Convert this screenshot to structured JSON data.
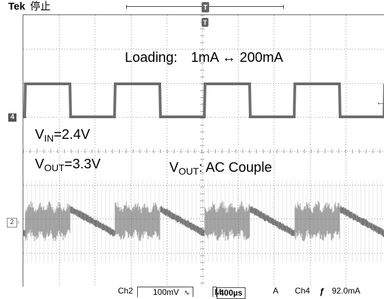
{
  "scope": {
    "brand": "Tek",
    "acq_status": "停止",
    "trigger_glyph": "T",
    "ch4_marker": "4",
    "ch2_marker": "2"
  },
  "annotations": {
    "loading_label": "Loading:",
    "loading_range": "1mA  ↔ 200mA",
    "vin_sym": "V",
    "vin_sub": "IN",
    "vin_val": "=2.4V",
    "vout_sym": "V",
    "vout_sub": "OUT",
    "vout_val": "=3.3V",
    "vout_ac_sym": "V",
    "vout_ac_sub": "OUT",
    "vout_ac_val": ": AC Couple"
  },
  "readout": {
    "ch2_label": "Ch2",
    "ch2_scale": "100mV",
    "ac_symbol": "∿",
    "timebase_prefix": "M",
    "timebase": "400µs",
    "delta": "A",
    "trigger_source": "Ch4",
    "slope_icon": "rising-edge",
    "trigger_level": "92.0mA"
  },
  "colors": {
    "trace": "#555555",
    "grid": "#9a9a9a",
    "background": "#ffffff"
  }
}
